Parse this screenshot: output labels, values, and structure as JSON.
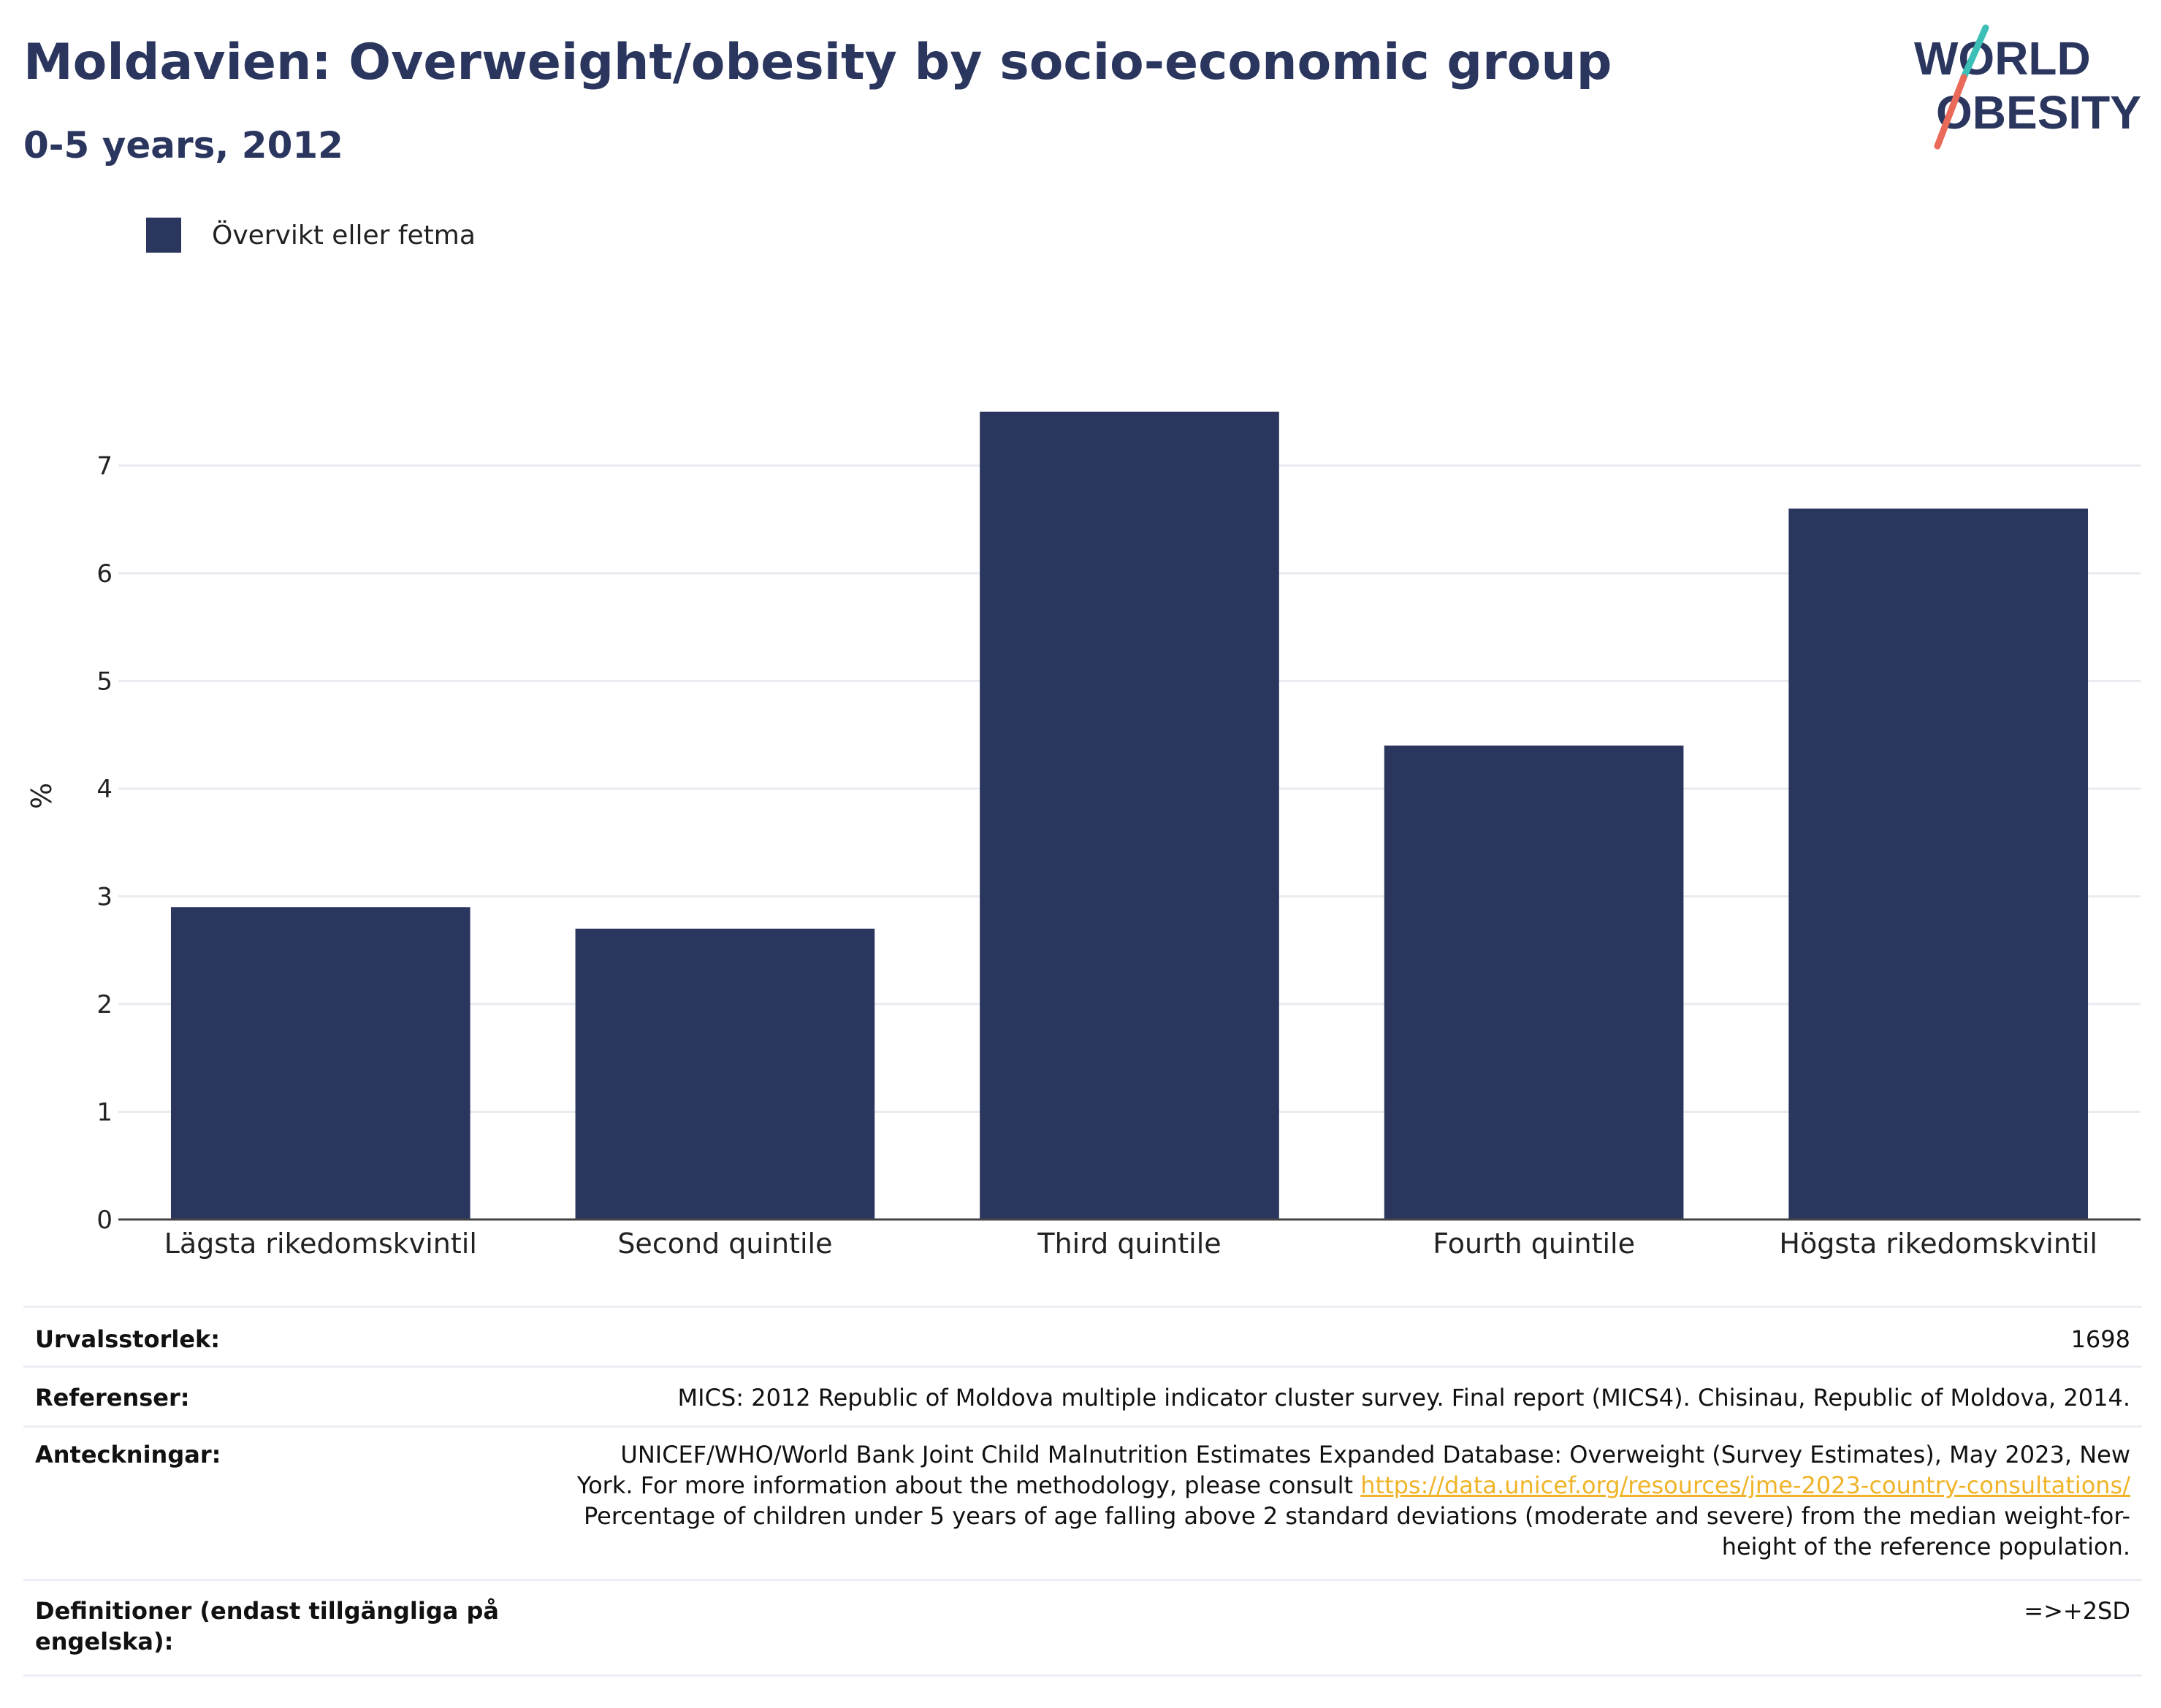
{
  "title": "Moldavien: Overweight/obesity by socio-economic group",
  "subtitle": "0-5 years, 2012",
  "logo": {
    "line1": "WORLD",
    "line2": "OBESITY"
  },
  "legend": {
    "label": "Övervikt eller fetma",
    "color": "#2b365f"
  },
  "chart_data": {
    "type": "bar",
    "categories": [
      "Lägsta rikedomskvintil",
      "Second quintile",
      "Third quintile",
      "Fourth quintile",
      "Högsta rikedomskvintil"
    ],
    "series": [
      {
        "name": "Övervikt eller fetma",
        "values": [
          2.9,
          2.7,
          7.5,
          4.4,
          6.6
        ],
        "color": "#2b365f"
      }
    ],
    "ylabel": "%",
    "xlabel": "",
    "ylim": [
      0,
      7.5
    ],
    "yticks": [
      0,
      1,
      2,
      3,
      4,
      5,
      6,
      7
    ],
    "grid": true,
    "legend_position": "top-left"
  },
  "info": {
    "sample_label": "Urvalsstorlek:",
    "sample_value": "1698",
    "refs_label": "Referenser:",
    "refs_value": "MICS: 2012 Republic of Moldova multiple indicator cluster survey. Final report (MICS4). Chisinau, Republic of Moldova, 2014.",
    "notes_label": "Anteckningar:",
    "notes_line1": "UNICEF/WHO/World Bank Joint Child Malnutrition Estimates Expanded Database: Overweight (Survey Estimates), May 2023, New",
    "notes_line2_prefix": "York. For more information about the methodology, please consult ",
    "notes_link": "https://data.unicef.org/resources/jme-2023-country-consultations/",
    "notes_line3": "Percentage of children under 5 years of age falling above 2 standard deviations (moderate and severe) from the median weight-for-",
    "notes_line4": "height of the reference population.",
    "defs_label_line1": "Definitioner (endast tillgängliga på",
    "defs_label_line2": "engelska):",
    "defs_value": "=>+2SD"
  }
}
